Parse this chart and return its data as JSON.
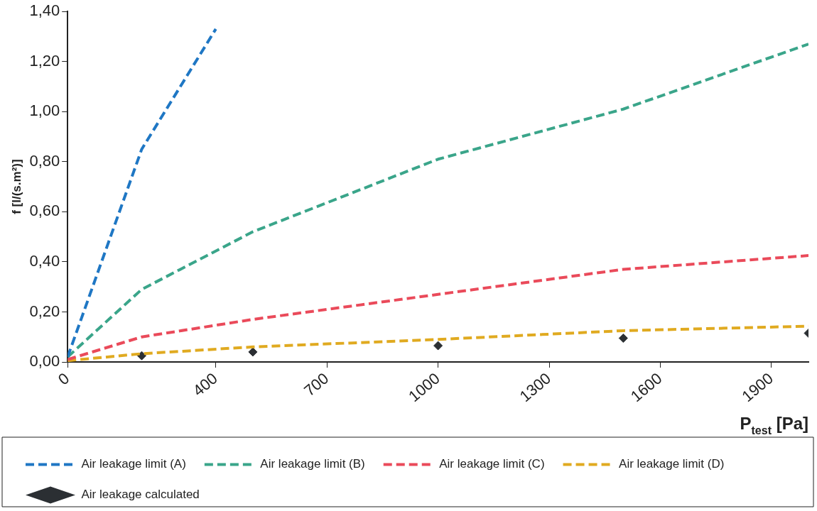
{
  "chart_data": {
    "type": "line",
    "xlabel": "P$_{test}$ [Pa]",
    "ylabel": "f [l/(s.m²)]",
    "xlim": [
      0,
      2000
    ],
    "xticks": [
      0,
      400,
      700,
      1000,
      1300,
      1600,
      1900
    ],
    "ylim": [
      0,
      1.4
    ],
    "yticks": [
      {
        "value": 0,
        "label": "0,00"
      },
      {
        "value": 0.2,
        "label": "0,20"
      },
      {
        "value": 0.4,
        "label": "0,40"
      },
      {
        "value": 0.6,
        "label": "0,60"
      },
      {
        "value": 0.8,
        "label": "0,80"
      },
      {
        "value": 1.0,
        "label": "1,00"
      },
      {
        "value": 1.2,
        "label": "1,20"
      },
      {
        "value": 1.4,
        "label": "1,40"
      }
    ],
    "grid": false,
    "legend": "bottom",
    "line_style": "dashed",
    "marker": "none",
    "series": [
      {
        "name": "Air leakage limit (A)",
        "color": "#1f77c4",
        "x": [
          0,
          200,
          400
        ],
        "values": [
          0.02,
          0.85,
          1.33
        ]
      },
      {
        "name": "Air leakage limit (B)",
        "color": "#3aa58a",
        "x": [
          0,
          200,
          500,
          1000,
          1500,
          2000
        ],
        "values": [
          0.02,
          0.29,
          0.52,
          0.81,
          1.01,
          1.27
        ]
      },
      {
        "name": "Air leakage limit (C)",
        "color": "#ea4a5a",
        "x": [
          0,
          200,
          500,
          1000,
          1500,
          2000
        ],
        "values": [
          0.01,
          0.1,
          0.17,
          0.27,
          0.37,
          0.425
        ]
      },
      {
        "name": "Air leakage limit (D)",
        "color": "#e0aa20",
        "x": [
          0,
          200,
          500,
          1000,
          1500,
          2000
        ],
        "values": [
          0.005,
          0.033,
          0.06,
          0.09,
          0.125,
          0.143
        ]
      },
      {
        "name": "Air leakage calculated",
        "type": "scatter",
        "marker": "diamond",
        "color": "#2b2f33",
        "x": [
          200,
          500,
          1000,
          1500,
          2000
        ],
        "values": [
          0.025,
          0.04,
          0.065,
          0.095,
          0.115
        ]
      }
    ]
  }
}
